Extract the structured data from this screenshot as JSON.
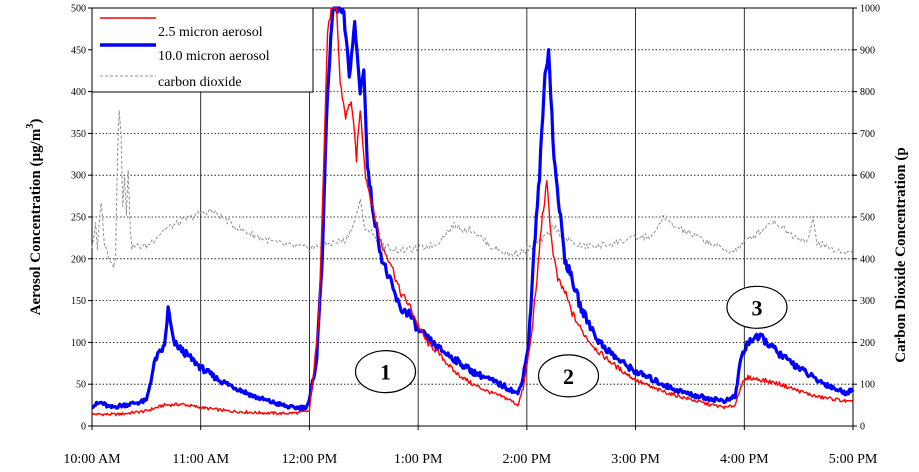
{
  "chart_data": {
    "type": "line",
    "xlabel": "",
    "ylabel_left": "Aerosol Concentration (µg/m",
    "ylabel_left_sup": "3",
    "ylabel_left_tail": ")",
    "ylabel_right": "Carbon Dioxide Concentration (p",
    "x_range": [
      0,
      420
    ],
    "x_tick_minutes": [
      0,
      60,
      120,
      180,
      240,
      300,
      360,
      420
    ],
    "x_tick_labels": [
      "10:00 AM",
      "11:00 AM",
      "12:00 PM",
      "1:00 PM",
      "2:00 PM",
      "3:00 PM",
      "4:00 PM",
      "5:00 PM"
    ],
    "y_left_range": [
      0,
      500
    ],
    "y_left_ticks": [
      0,
      50,
      100,
      150,
      200,
      250,
      300,
      350,
      400,
      450,
      500
    ],
    "y_right_range": [
      0,
      1000
    ],
    "y_right_ticks": [
      0,
      100,
      200,
      300,
      400,
      500,
      600,
      700,
      800,
      900,
      1000
    ],
    "grid": true,
    "legend": "top-left",
    "legend_entries": [
      "2.5 micron aerosol",
      "10.0 micron aerosol",
      "carbon dioxide"
    ],
    "series": [
      {
        "name": "2.5 micron aerosol",
        "color": "#ff0000",
        "axis": "left",
        "points": [
          [
            0,
            14
          ],
          [
            15,
            14
          ],
          [
            30,
            18
          ],
          [
            40,
            25
          ],
          [
            50,
            26
          ],
          [
            60,
            22
          ],
          [
            75,
            18
          ],
          [
            90,
            16
          ],
          [
            105,
            15
          ],
          [
            115,
            16
          ],
          [
            120,
            18
          ],
          [
            125,
            120
          ],
          [
            128,
            320
          ],
          [
            130,
            470
          ],
          [
            132,
            500
          ],
          [
            135,
            500
          ],
          [
            137,
            410
          ],
          [
            140,
            370
          ],
          [
            143,
            390
          ],
          [
            146,
            320
          ],
          [
            148,
            380
          ],
          [
            151,
            300
          ],
          [
            155,
            260
          ],
          [
            160,
            215
          ],
          [
            165,
            195
          ],
          [
            170,
            160
          ],
          [
            175,
            145
          ],
          [
            180,
            120
          ],
          [
            185,
            100
          ],
          [
            190,
            90
          ],
          [
            200,
            65
          ],
          [
            210,
            50
          ],
          [
            220,
            40
          ],
          [
            230,
            32
          ],
          [
            235,
            25
          ],
          [
            238,
            45
          ],
          [
            242,
            100
          ],
          [
            245,
            160
          ],
          [
            248,
            240
          ],
          [
            251,
            290
          ],
          [
            254,
            215
          ],
          [
            257,
            175
          ],
          [
            261,
            160
          ],
          [
            265,
            135
          ],
          [
            270,
            115
          ],
          [
            275,
            100
          ],
          [
            280,
            88
          ],
          [
            290,
            70
          ],
          [
            300,
            55
          ],
          [
            310,
            45
          ],
          [
            320,
            38
          ],
          [
            330,
            32
          ],
          [
            340,
            26
          ],
          [
            350,
            22
          ],
          [
            355,
            25
          ],
          [
            358,
            48
          ],
          [
            362,
            58
          ],
          [
            370,
            55
          ],
          [
            380,
            50
          ],
          [
            390,
            42
          ],
          [
            400,
            35
          ],
          [
            410,
            32
          ],
          [
            420,
            28
          ]
        ]
      },
      {
        "name": "10.0 micron aerosol",
        "color": "#0000ff",
        "axis": "left",
        "points": [
          [
            0,
            24
          ],
          [
            5,
            28
          ],
          [
            10,
            22
          ],
          [
            20,
            26
          ],
          [
            25,
            28
          ],
          [
            30,
            30
          ],
          [
            35,
            80
          ],
          [
            40,
            95
          ],
          [
            42,
            140
          ],
          [
            45,
            100
          ],
          [
            50,
            90
          ],
          [
            55,
            80
          ],
          [
            60,
            70
          ],
          [
            70,
            55
          ],
          [
            80,
            45
          ],
          [
            90,
            35
          ],
          [
            100,
            28
          ],
          [
            110,
            22
          ],
          [
            118,
            22
          ],
          [
            120,
            30
          ],
          [
            124,
            80
          ],
          [
            127,
            200
          ],
          [
            130,
            400
          ],
          [
            133,
            500
          ],
          [
            136,
            500
          ],
          [
            139,
            490
          ],
          [
            142,
            420
          ],
          [
            145,
            480
          ],
          [
            148,
            400
          ],
          [
            150,
            430
          ],
          [
            152,
            310
          ],
          [
            155,
            260
          ],
          [
            160,
            200
          ],
          [
            165,
            170
          ],
          [
            170,
            140
          ],
          [
            175,
            135
          ],
          [
            180,
            115
          ],
          [
            190,
            95
          ],
          [
            200,
            80
          ],
          [
            210,
            65
          ],
          [
            220,
            55
          ],
          [
            230,
            45
          ],
          [
            235,
            38
          ],
          [
            238,
            60
          ],
          [
            241,
            100
          ],
          [
            244,
            210
          ],
          [
            247,
            300
          ],
          [
            250,
            420
          ],
          [
            252,
            450
          ],
          [
            255,
            320
          ],
          [
            258,
            260
          ],
          [
            261,
            200
          ],
          [
            265,
            175
          ],
          [
            270,
            140
          ],
          [
            275,
            120
          ],
          [
            280,
            100
          ],
          [
            290,
            80
          ],
          [
            300,
            65
          ],
          [
            310,
            55
          ],
          [
            320,
            45
          ],
          [
            330,
            38
          ],
          [
            340,
            33
          ],
          [
            350,
            30
          ],
          [
            355,
            35
          ],
          [
            358,
            80
          ],
          [
            362,
            100
          ],
          [
            365,
            105
          ],
          [
            370,
            105
          ],
          [
            375,
            95
          ],
          [
            380,
            85
          ],
          [
            390,
            70
          ],
          [
            400,
            55
          ],
          [
            410,
            45
          ],
          [
            415,
            40
          ],
          [
            420,
            42
          ]
        ]
      },
      {
        "name": "carbon dioxide",
        "color": "#909090",
        "axis": "right",
        "points": [
          [
            0,
            430
          ],
          [
            2,
            480
          ],
          [
            3,
            420
          ],
          [
            5,
            540
          ],
          [
            7,
            430
          ],
          [
            9,
            410
          ],
          [
            11,
            390
          ],
          [
            12,
            380
          ],
          [
            13,
            410
          ],
          [
            14,
            640
          ],
          [
            15,
            760
          ],
          [
            16,
            700
          ],
          [
            17,
            520
          ],
          [
            18,
            600
          ],
          [
            19,
            510
          ],
          [
            20,
            620
          ],
          [
            21,
            470
          ],
          [
            22,
            430
          ],
          [
            30,
            430
          ],
          [
            40,
            470
          ],
          [
            50,
            490
          ],
          [
            60,
            510
          ],
          [
            65,
            515
          ],
          [
            70,
            505
          ],
          [
            80,
            475
          ],
          [
            90,
            455
          ],
          [
            100,
            440
          ],
          [
            110,
            430
          ],
          [
            120,
            425
          ],
          [
            130,
            435
          ],
          [
            140,
            445
          ],
          [
            145,
            490
          ],
          [
            148,
            540
          ],
          [
            150,
            480
          ],
          [
            155,
            460
          ],
          [
            160,
            430
          ],
          [
            170,
            420
          ],
          [
            180,
            425
          ],
          [
            190,
            435
          ],
          [
            195,
            460
          ],
          [
            200,
            480
          ],
          [
            205,
            470
          ],
          [
            210,
            470
          ],
          [
            220,
            430
          ],
          [
            230,
            410
          ],
          [
            240,
            420
          ],
          [
            250,
            450
          ],
          [
            255,
            480
          ],
          [
            260,
            450
          ],
          [
            265,
            440
          ],
          [
            270,
            430
          ],
          [
            280,
            430
          ],
          [
            290,
            440
          ],
          [
            300,
            450
          ],
          [
            310,
            455
          ],
          [
            315,
            500
          ],
          [
            320,
            480
          ],
          [
            330,
            460
          ],
          [
            340,
            440
          ],
          [
            350,
            420
          ],
          [
            355,
            420
          ],
          [
            360,
            440
          ],
          [
            370,
            470
          ],
          [
            375,
            490
          ],
          [
            380,
            480
          ],
          [
            385,
            460
          ],
          [
            390,
            450
          ],
          [
            395,
            445
          ],
          [
            398,
            495
          ],
          [
            400,
            440
          ],
          [
            410,
            420
          ],
          [
            420,
            415
          ]
        ]
      }
    ],
    "annotations": [
      {
        "label": "1",
        "x": 162,
        "y": 65
      },
      {
        "label": "2",
        "x": 263,
        "y": 60
      },
      {
        "label": "3",
        "x": 367,
        "y": 142
      }
    ]
  }
}
